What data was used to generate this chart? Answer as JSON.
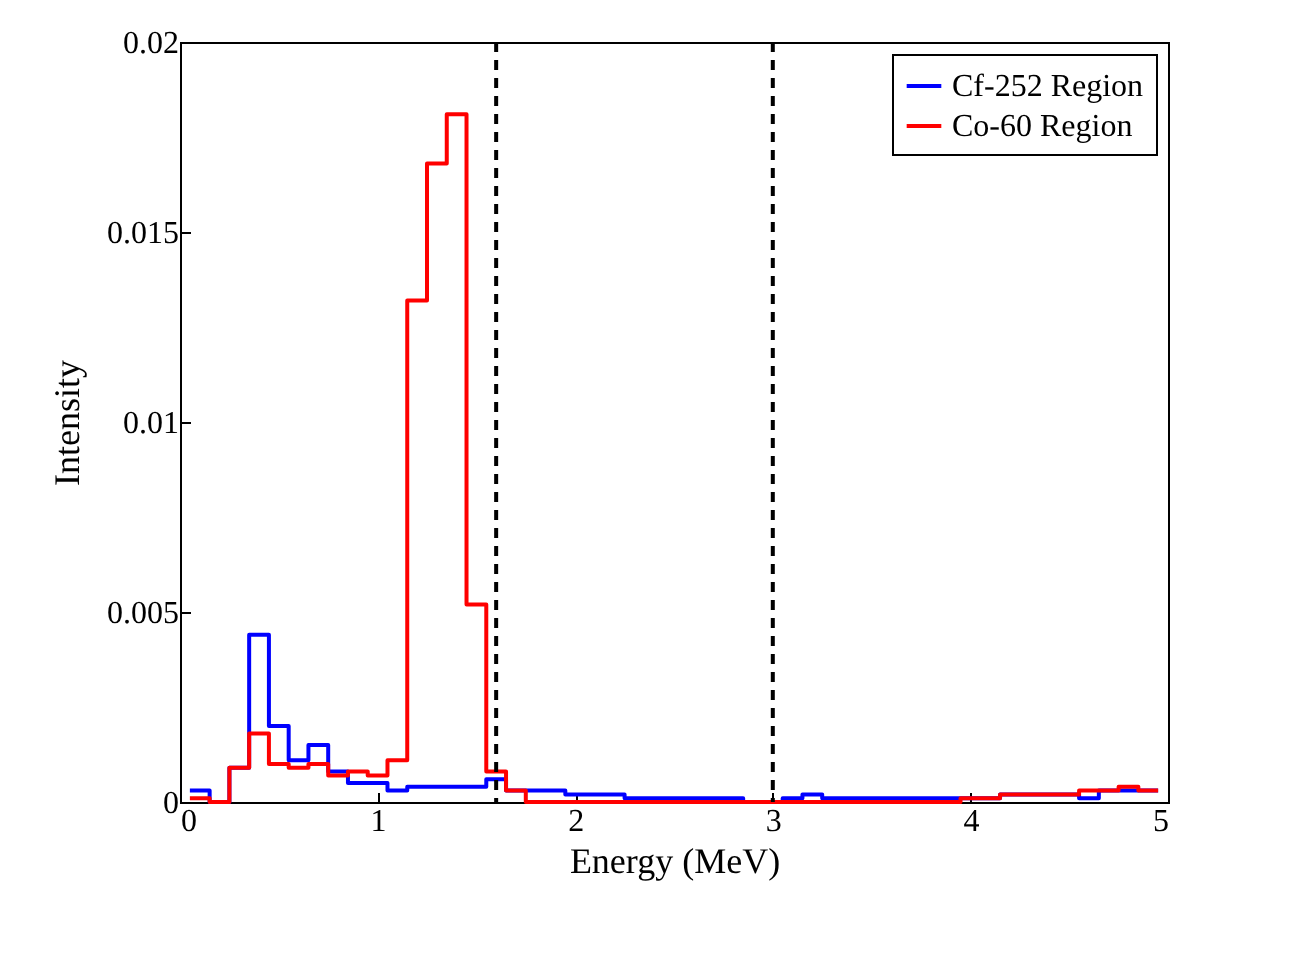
{
  "chart_data": {
    "type": "histogram",
    "xlabel": "Energy (MeV)",
    "ylabel": "Intensity",
    "bins": [
      0.05,
      0.15,
      0.25,
      0.35,
      0.45,
      0.55,
      0.65,
      0.75,
      0.85,
      0.95,
      1.05,
      1.15,
      1.25,
      1.35,
      1.45,
      1.55,
      1.65,
      1.75,
      1.85,
      1.95,
      2.05,
      2.15,
      2.25,
      2.35,
      2.45,
      2.55,
      2.65,
      2.75,
      2.85,
      2.95,
      3.05,
      3.15,
      3.25,
      3.35,
      3.45,
      3.55,
      3.65,
      3.75,
      3.85,
      3.95,
      4.05,
      4.15,
      4.25,
      4.35,
      4.45,
      4.55,
      4.65,
      4.75,
      4.85,
      4.95
    ],
    "series": [
      {
        "name": "Cf-252 Region",
        "color": "#0000ff",
        "values": [
          0.0003,
          0,
          0.0009,
          0.0044,
          0.002,
          0.0011,
          0.0015,
          0.0008,
          0.0005,
          0.0005,
          0.0003,
          0.0004,
          0.0004,
          0.0004,
          0.0004,
          0.0006,
          0.0003,
          0.0003,
          0.0003,
          0.0002,
          0.0002,
          0.0002,
          0.0001,
          0.0001,
          0.0001,
          0.0001,
          0.0001,
          0.0001,
          0,
          0,
          0.0001,
          0.0002,
          0.0001,
          0.0001,
          0.0001,
          0.0001,
          0.0001,
          0.0001,
          0.0001,
          0.0001,
          0.0001,
          0.0002,
          0.0002,
          0.0002,
          0.0002,
          0.0001,
          0.0003,
          0.0003,
          0.0003
        ]
      },
      {
        "name": "Co-60 Region",
        "color": "#ff0000",
        "values": [
          0.0001,
          0,
          0.0009,
          0.0018,
          0.001,
          0.0009,
          0.001,
          0.0007,
          0.0008,
          0.0007,
          0.0011,
          0.0132,
          0.0168,
          0.0181,
          0.0052,
          0.0008,
          0.0003,
          0,
          0,
          0,
          0,
          0,
          0,
          0,
          0,
          0,
          0,
          0,
          0,
          0,
          0,
          0,
          0,
          0,
          0,
          0,
          0,
          0,
          0,
          0.0001,
          0.0001,
          0.0002,
          0.0002,
          0.0002,
          0.0002,
          0.0003,
          0.0003,
          0.0004,
          0.0003
        ]
      }
    ],
    "xlim": [
      0,
      5
    ],
    "xticks": [
      0,
      1,
      2,
      3,
      4,
      5
    ],
    "ylim": [
      0,
      0.02
    ],
    "yticks": [
      0,
      0.005,
      0.01,
      0.015,
      0.02
    ],
    "ref_lines": [
      {
        "axis": "x",
        "value": 1.6,
        "color": "#000000",
        "line_style": "dashed"
      },
      {
        "axis": "x",
        "value": 3,
        "color": "#000000",
        "line_style": "dashed"
      }
    ],
    "grid": false,
    "legend": "top right",
    "line_style": "solid"
  }
}
